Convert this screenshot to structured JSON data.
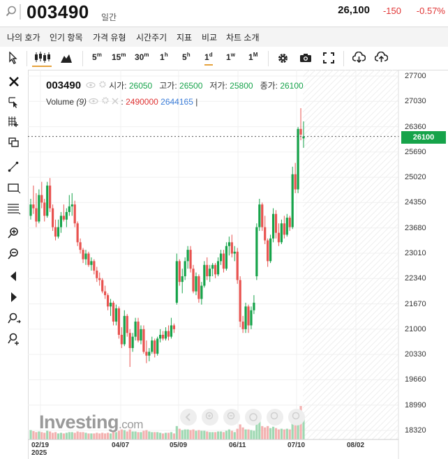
{
  "header": {
    "symbol": "003490",
    "period": "일간",
    "price": "26,100",
    "change": "-150",
    "change_pct": "-0.57%",
    "negative_color": "#e03333",
    "positive_color": "#16a34a"
  },
  "menu": [
    "나의 호가",
    "인기 항목",
    "가격 유형",
    "시간주기",
    "지표",
    "비교",
    "차트 소개"
  ],
  "toolbar": {
    "timeframes": [
      {
        "base": "5",
        "sup": "m"
      },
      {
        "base": "15",
        "sup": "m"
      },
      {
        "base": "30",
        "sup": "m"
      },
      {
        "base": "1",
        "sup": "h"
      },
      {
        "base": "5",
        "sup": "h"
      },
      {
        "base": "1",
        "sup": "d"
      },
      {
        "base": "1",
        "sup": "w"
      },
      {
        "base": "1",
        "sup": "M"
      }
    ],
    "active_timeframe_index": 5,
    "icons": [
      "cursor-icon",
      "candlestick-icon",
      "area-chart-icon",
      "gear-icon",
      "camera-icon",
      "fullscreen-icon",
      "download-icon",
      "upload-icon"
    ]
  },
  "left_tools": [
    "close-icon",
    "cursor-cross-icon",
    "crosshair-icon",
    "layers-icon",
    "trendline-icon",
    "rectangle-icon",
    "fibonacci-icon",
    "zoom-in-icon",
    "zoom-out-icon",
    "scroll-left-icon",
    "scroll-right-icon",
    "magnet-icon",
    "measure-icon"
  ],
  "legend": {
    "symbol": "003490",
    "open_label": "시가:",
    "open": "26050",
    "high_label": "고가:",
    "high": "26500",
    "low_label": "저가:",
    "low": "25800",
    "close_label": "종가:",
    "close": "26100",
    "volume_label": "Volume",
    "volume_param": "(9)",
    "volume": "2490000",
    "volume_ma": "2644165",
    "volume_ma_sep": "|"
  },
  "watermark": {
    "main": "Investing",
    "suffix": ".com"
  },
  "chart_data": {
    "type": "candlestick",
    "x_ticks": [
      "02/19\n2025",
      "04/07",
      "05/09",
      "06/11",
      "07/10",
      "08/02"
    ],
    "y_ticks": [
      27700,
      27030,
      26360,
      25690,
      25020,
      24350,
      23680,
      23010,
      22340,
      21670,
      21000,
      20330,
      19660,
      18990,
      18320
    ],
    "ylim": [
      17980,
      27820
    ],
    "last_price": 26100,
    "last_price_label": "26100",
    "up_color": "#16a34a",
    "down_color": "#e8524f",
    "candles": [
      {
        "o": 24000,
        "h": 24450,
        "l": 23900,
        "c": 24300,
        "v": 0.28
      },
      {
        "o": 24300,
        "h": 24800,
        "l": 24050,
        "c": 24200,
        "v": 0.25
      },
      {
        "o": 24200,
        "h": 24600,
        "l": 23700,
        "c": 23850,
        "v": 0.22
      },
      {
        "o": 23850,
        "h": 24700,
        "l": 23800,
        "c": 24550,
        "v": 0.24
      },
      {
        "o": 24550,
        "h": 24900,
        "l": 24200,
        "c": 24350,
        "v": 0.22
      },
      {
        "o": 24350,
        "h": 24450,
        "l": 23850,
        "c": 24000,
        "v": 0.2
      },
      {
        "o": 24000,
        "h": 24900,
        "l": 23950,
        "c": 24800,
        "v": 0.26
      },
      {
        "o": 24800,
        "h": 25000,
        "l": 24100,
        "c": 24200,
        "v": 0.24
      },
      {
        "o": 24200,
        "h": 24300,
        "l": 23600,
        "c": 23700,
        "v": 0.2
      },
      {
        "o": 23700,
        "h": 23900,
        "l": 23350,
        "c": 23450,
        "v": 0.22
      },
      {
        "o": 23450,
        "h": 23900,
        "l": 23400,
        "c": 23700,
        "v": 0.18
      },
      {
        "o": 23700,
        "h": 24100,
        "l": 23550,
        "c": 24000,
        "v": 0.2
      },
      {
        "o": 24000,
        "h": 24300,
        "l": 23850,
        "c": 23900,
        "v": 0.18
      },
      {
        "o": 23900,
        "h": 24200,
        "l": 23700,
        "c": 24100,
        "v": 0.2
      },
      {
        "o": 24100,
        "h": 24550,
        "l": 24000,
        "c": 24250,
        "v": 0.22
      },
      {
        "o": 24250,
        "h": 24600,
        "l": 24000,
        "c": 24300,
        "v": 0.22
      },
      {
        "o": 24300,
        "h": 24400,
        "l": 23700,
        "c": 23800,
        "v": 0.2
      },
      {
        "o": 23800,
        "h": 23850,
        "l": 23200,
        "c": 23300,
        "v": 0.24
      },
      {
        "o": 23300,
        "h": 23400,
        "l": 23000,
        "c": 23100,
        "v": 0.22
      },
      {
        "o": 23100,
        "h": 23150,
        "l": 22750,
        "c": 22850,
        "v": 0.22
      },
      {
        "o": 22850,
        "h": 23100,
        "l": 22700,
        "c": 23000,
        "v": 0.2
      },
      {
        "o": 23000,
        "h": 23050,
        "l": 22650,
        "c": 22700,
        "v": 0.18
      },
      {
        "o": 22700,
        "h": 22900,
        "l": 22550,
        "c": 22800,
        "v": 0.18
      },
      {
        "o": 22800,
        "h": 22850,
        "l": 22450,
        "c": 22550,
        "v": 0.18
      },
      {
        "o": 22550,
        "h": 22650,
        "l": 22250,
        "c": 22350,
        "v": 0.2
      },
      {
        "o": 22350,
        "h": 22500,
        "l": 22150,
        "c": 22300,
        "v": 0.18
      },
      {
        "o": 22300,
        "h": 22350,
        "l": 21950,
        "c": 22000,
        "v": 0.2
      },
      {
        "o": 22000,
        "h": 22150,
        "l": 21800,
        "c": 21900,
        "v": 0.18
      },
      {
        "o": 21900,
        "h": 21950,
        "l": 21500,
        "c": 21600,
        "v": 0.2
      },
      {
        "o": 21600,
        "h": 21800,
        "l": 21350,
        "c": 21700,
        "v": 0.18
      },
      {
        "o": 21700,
        "h": 21750,
        "l": 21100,
        "c": 21200,
        "v": 0.22
      },
      {
        "o": 21200,
        "h": 21650,
        "l": 21100,
        "c": 21550,
        "v": 0.22
      },
      {
        "o": 21550,
        "h": 21600,
        "l": 20750,
        "c": 20850,
        "v": 0.26
      },
      {
        "o": 20850,
        "h": 21050,
        "l": 20500,
        "c": 20600,
        "v": 0.3
      },
      {
        "o": 20600,
        "h": 21500,
        "l": 20550,
        "c": 21350,
        "v": 0.28
      },
      {
        "o": 21350,
        "h": 21400,
        "l": 20800,
        "c": 20900,
        "v": 0.24
      },
      {
        "o": 20900,
        "h": 21000,
        "l": 20000,
        "c": 20500,
        "v": 0.3
      },
      {
        "o": 20500,
        "h": 20900,
        "l": 20400,
        "c": 20800,
        "v": 0.24
      },
      {
        "o": 20800,
        "h": 21300,
        "l": 20700,
        "c": 21200,
        "v": 0.24
      },
      {
        "o": 21200,
        "h": 21300,
        "l": 20650,
        "c": 20700,
        "v": 0.22
      },
      {
        "o": 20700,
        "h": 21100,
        "l": 20600,
        "c": 21000,
        "v": 0.22
      },
      {
        "o": 21000,
        "h": 21100,
        "l": 20350,
        "c": 20400,
        "v": 0.26
      },
      {
        "o": 20400,
        "h": 20700,
        "l": 20100,
        "c": 20300,
        "v": 0.28
      },
      {
        "o": 20300,
        "h": 20500,
        "l": 20150,
        "c": 20400,
        "v": 0.24
      },
      {
        "o": 20400,
        "h": 20800,
        "l": 20350,
        "c": 20700,
        "v": 0.22
      },
      {
        "o": 20700,
        "h": 20750,
        "l": 20250,
        "c": 20350,
        "v": 0.22
      },
      {
        "o": 20350,
        "h": 20800,
        "l": 20300,
        "c": 20750,
        "v": 0.22
      },
      {
        "o": 20750,
        "h": 21000,
        "l": 20650,
        "c": 20850,
        "v": 0.2
      },
      {
        "o": 20850,
        "h": 20950,
        "l": 20700,
        "c": 20750,
        "v": 0.18
      },
      {
        "o": 20750,
        "h": 21050,
        "l": 20700,
        "c": 20950,
        "v": 0.2
      },
      {
        "o": 20950,
        "h": 21100,
        "l": 20700,
        "c": 20800,
        "v": 0.2
      },
      {
        "o": 20800,
        "h": 21300,
        "l": 20750,
        "c": 21100,
        "v": 0.22
      },
      {
        "o": 21100,
        "h": 21150,
        "l": 20900,
        "c": 21000,
        "v": 0.18
      },
      {
        "o": 21700,
        "h": 23000,
        "l": 21650,
        "c": 22800,
        "v": 0.4
      },
      {
        "o": 22800,
        "h": 22850,
        "l": 22150,
        "c": 22250,
        "v": 0.32
      },
      {
        "o": 22250,
        "h": 22600,
        "l": 21950,
        "c": 22400,
        "v": 0.28
      },
      {
        "o": 22400,
        "h": 22900,
        "l": 22300,
        "c": 22800,
        "v": 0.3
      },
      {
        "o": 22800,
        "h": 23200,
        "l": 22600,
        "c": 23100,
        "v": 0.3
      },
      {
        "o": 23100,
        "h": 23200,
        "l": 22500,
        "c": 22600,
        "v": 0.28
      },
      {
        "o": 22600,
        "h": 22700,
        "l": 21950,
        "c": 22000,
        "v": 0.3
      },
      {
        "o": 22000,
        "h": 22500,
        "l": 21900,
        "c": 22400,
        "v": 0.26
      },
      {
        "o": 22400,
        "h": 22450,
        "l": 21700,
        "c": 21800,
        "v": 0.28
      },
      {
        "o": 21800,
        "h": 22250,
        "l": 21650,
        "c": 22150,
        "v": 0.26
      },
      {
        "o": 22150,
        "h": 22800,
        "l": 22100,
        "c": 22700,
        "v": 0.26
      },
      {
        "o": 22700,
        "h": 22900,
        "l": 22300,
        "c": 22400,
        "v": 0.24
      },
      {
        "o": 22400,
        "h": 22700,
        "l": 22250,
        "c": 22600,
        "v": 0.22
      },
      {
        "o": 22600,
        "h": 22750,
        "l": 22400,
        "c": 22700,
        "v": 0.22
      },
      {
        "o": 22700,
        "h": 22750,
        "l": 22350,
        "c": 22450,
        "v": 0.22
      },
      {
        "o": 22450,
        "h": 22900,
        "l": 22400,
        "c": 22800,
        "v": 0.24
      },
      {
        "o": 22800,
        "h": 23100,
        "l": 22700,
        "c": 23000,
        "v": 0.24
      },
      {
        "o": 23000,
        "h": 23100,
        "l": 22500,
        "c": 22600,
        "v": 0.22
      },
      {
        "o": 22600,
        "h": 23300,
        "l": 22550,
        "c": 23200,
        "v": 0.26
      },
      {
        "o": 23200,
        "h": 23450,
        "l": 22950,
        "c": 23300,
        "v": 0.3
      },
      {
        "o": 23300,
        "h": 23500,
        "l": 22900,
        "c": 23000,
        "v": 0.26
      },
      {
        "o": 23000,
        "h": 23200,
        "l": 22800,
        "c": 23050,
        "v": 0.22
      },
      {
        "o": 23050,
        "h": 23150,
        "l": 22200,
        "c": 22300,
        "v": 0.32
      },
      {
        "o": 22300,
        "h": 22400,
        "l": 21050,
        "c": 21200,
        "v": 0.45
      },
      {
        "o": 21200,
        "h": 21350,
        "l": 20900,
        "c": 21000,
        "v": 0.36
      },
      {
        "o": 21000,
        "h": 21700,
        "l": 20900,
        "c": 21600,
        "v": 0.3
      },
      {
        "o": 21600,
        "h": 21650,
        "l": 20900,
        "c": 21100,
        "v": 0.3
      },
      {
        "o": 21100,
        "h": 21600,
        "l": 21000,
        "c": 21500,
        "v": 0.28
      },
      {
        "o": 21500,
        "h": 21900,
        "l": 21400,
        "c": 21700,
        "v": 0.26
      },
      {
        "o": 22400,
        "h": 23800,
        "l": 22300,
        "c": 23700,
        "v": 0.5
      },
      {
        "o": 23700,
        "h": 24450,
        "l": 23600,
        "c": 24300,
        "v": 0.6
      },
      {
        "o": 24300,
        "h": 24350,
        "l": 23600,
        "c": 23700,
        "v": 0.4
      },
      {
        "o": 23700,
        "h": 24000,
        "l": 23250,
        "c": 23350,
        "v": 0.36
      },
      {
        "o": 23350,
        "h": 23400,
        "l": 22650,
        "c": 22800,
        "v": 0.4
      },
      {
        "o": 22800,
        "h": 23500,
        "l": 22750,
        "c": 23400,
        "v": 0.34
      },
      {
        "o": 23400,
        "h": 24200,
        "l": 23300,
        "c": 24050,
        "v": 0.38
      },
      {
        "o": 24050,
        "h": 24150,
        "l": 23400,
        "c": 23550,
        "v": 0.34
      },
      {
        "o": 23550,
        "h": 23800,
        "l": 23200,
        "c": 23300,
        "v": 0.3
      },
      {
        "o": 23300,
        "h": 23900,
        "l": 23250,
        "c": 23800,
        "v": 0.32
      },
      {
        "o": 23800,
        "h": 24000,
        "l": 23400,
        "c": 23500,
        "v": 0.3
      },
      {
        "o": 23500,
        "h": 24050,
        "l": 23450,
        "c": 23950,
        "v": 0.32
      },
      {
        "o": 23950,
        "h": 24000,
        "l": 23600,
        "c": 23700,
        "v": 0.3
      },
      {
        "o": 23700,
        "h": 25300,
        "l": 23650,
        "c": 25100,
        "v": 0.55
      },
      {
        "o": 25100,
        "h": 25400,
        "l": 24600,
        "c": 24700,
        "v": 0.65
      },
      {
        "o": 24700,
        "h": 26350,
        "l": 24600,
        "c": 26300,
        "v": 0.9
      },
      {
        "o": 26300,
        "h": 26850,
        "l": 26000,
        "c": 26150,
        "v": 1.0
      },
      {
        "o": 26050,
        "h": 26500,
        "l": 25800,
        "c": 26100,
        "v": 0.7
      }
    ]
  }
}
